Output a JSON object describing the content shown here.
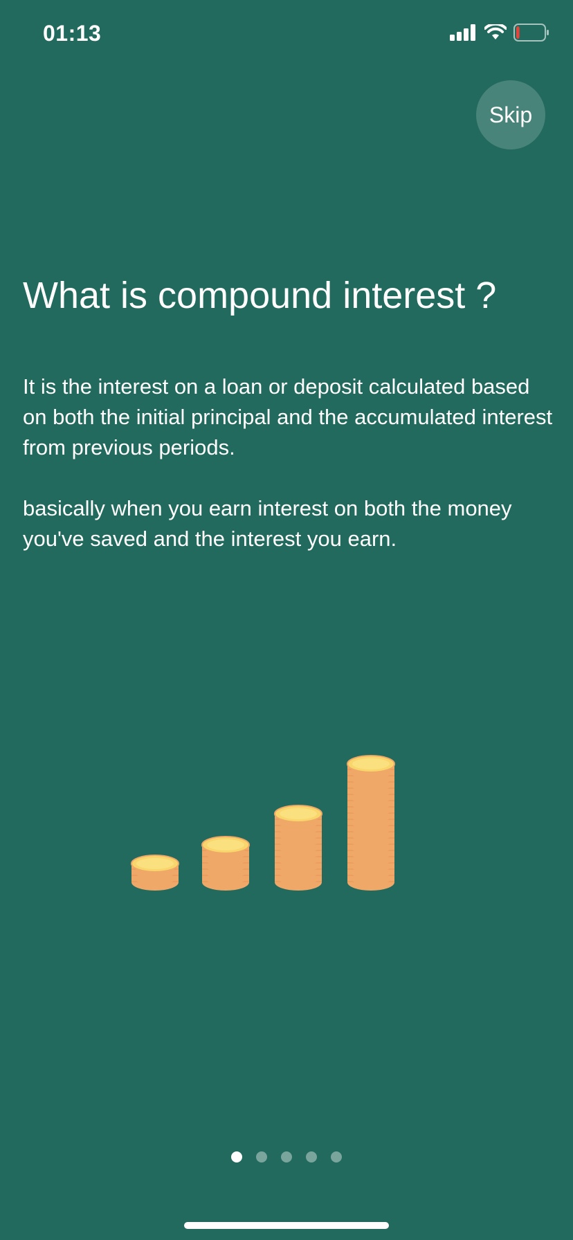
{
  "status_bar": {
    "time": "01:13",
    "signal_icon": "cellular-signal-icon",
    "wifi_icon": "wifi-icon",
    "battery_icon": "battery-low-icon",
    "battery_level": 0.12,
    "battery_color": "#e0443a"
  },
  "onboarding": {
    "skip_label": "Skip",
    "title": "What is compound interest ?",
    "paragraph_1": "It is the interest on a loan or deposit calculated based on both the initial principal and the accumulated interest from previous periods.",
    "paragraph_2": "basically when you earn interest on both the money you've saved and the interest you earn.",
    "illustration_icon": "coin-stacks-icon",
    "coin_stacks": [
      3,
      6,
      11,
      19
    ]
  },
  "pagination": {
    "total_pages": 5,
    "current_page": 1
  },
  "colors": {
    "background": "#216a5d",
    "coin_fill": "#f9d66b",
    "coin_edge": "#f0a868"
  }
}
